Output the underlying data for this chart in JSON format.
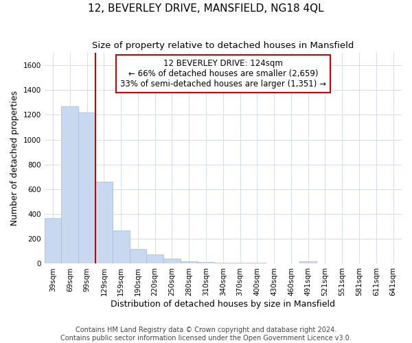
{
  "title": "12, BEVERLEY DRIVE, MANSFIELD, NG18 4QL",
  "subtitle": "Size of property relative to detached houses in Mansfield",
  "xlabel": "Distribution of detached houses by size in Mansfield",
  "ylabel": "Number of detached properties",
  "footer_line1": "Contains HM Land Registry data © Crown copyright and database right 2024.",
  "footer_line2": "Contains public sector information licensed under the Open Government Licence v3.0.",
  "categories": [
    "39sqm",
    "69sqm",
    "99sqm",
    "129sqm",
    "159sqm",
    "190sqm",
    "220sqm",
    "250sqm",
    "280sqm",
    "310sqm",
    "340sqm",
    "370sqm",
    "400sqm",
    "430sqm",
    "460sqm",
    "491sqm",
    "521sqm",
    "551sqm",
    "581sqm",
    "611sqm",
    "641sqm"
  ],
  "values": [
    370,
    1270,
    1220,
    660,
    270,
    120,
    75,
    40,
    20,
    15,
    10,
    10,
    10,
    0,
    0,
    20,
    0,
    0,
    0,
    0,
    0
  ],
  "bar_color": "#c8d8ee",
  "bar_edge_color": "#a8bede",
  "ylim": [
    0,
    1700
  ],
  "yticks": [
    0,
    200,
    400,
    600,
    800,
    1000,
    1200,
    1400,
    1600
  ],
  "property_line_x": 3,
  "property_line_color": "#cc0000",
  "annotation_text_line1": "12 BEVERLEY DRIVE: 124sqm",
  "annotation_text_line2": "← 66% of detached houses are smaller (2,659)",
  "annotation_text_line3": "33% of semi-detached houses are larger (1,351) →",
  "annotation_box_color": "#ffffff",
  "annotation_box_edge_color": "#cc0000",
  "background_color": "#ffffff",
  "grid_color": "#d4dcea",
  "title_fontsize": 11,
  "subtitle_fontsize": 9.5,
  "axis_label_fontsize": 9,
  "tick_fontsize": 7.5,
  "annotation_fontsize": 8.5,
  "footer_fontsize": 7
}
